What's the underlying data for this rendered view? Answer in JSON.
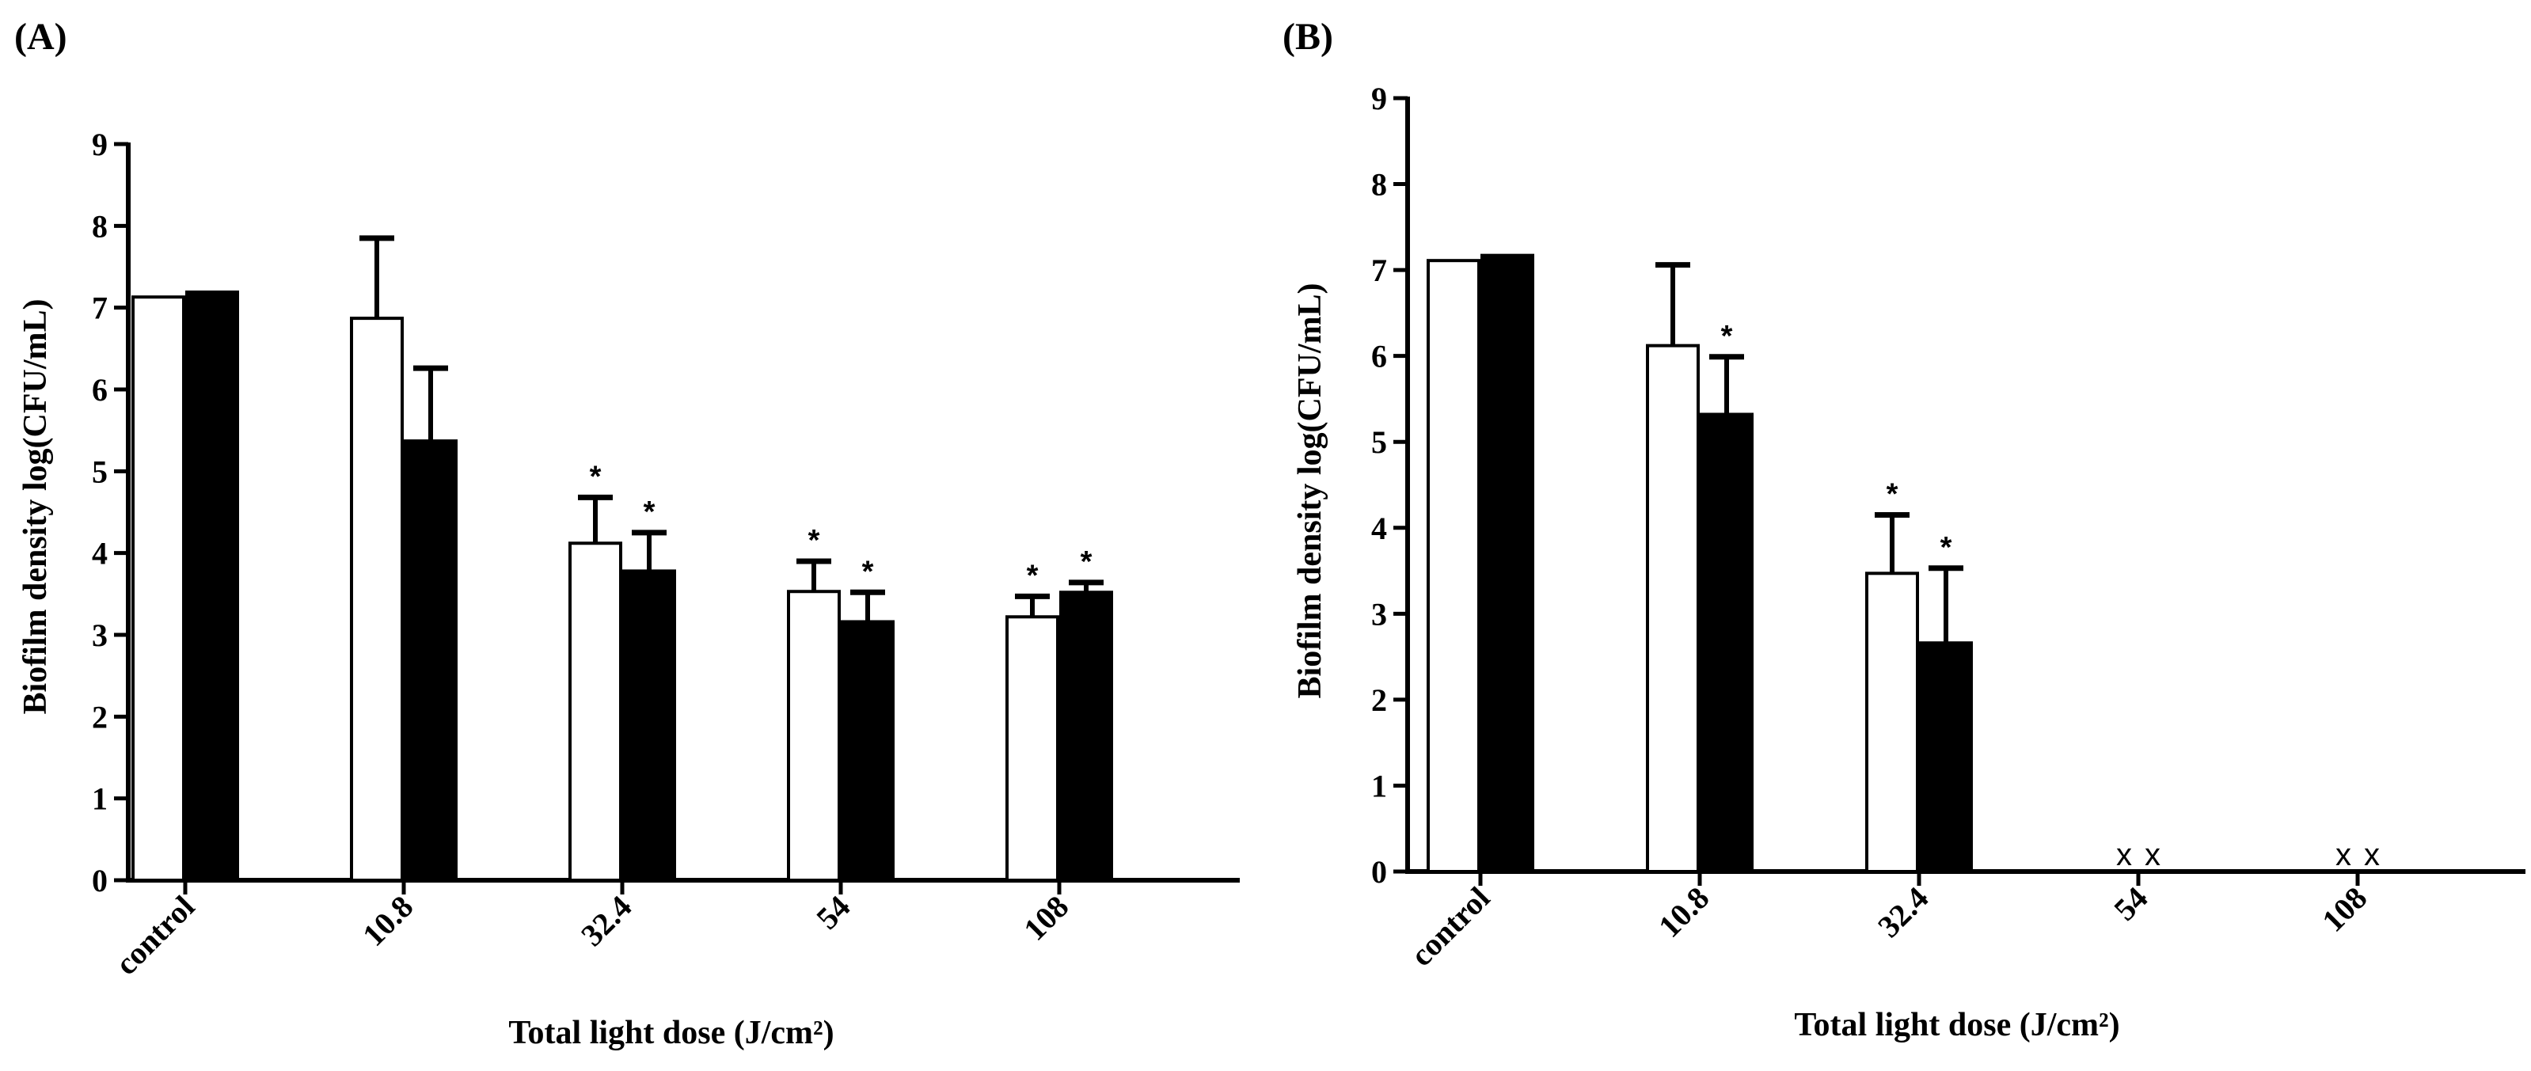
{
  "chart_data": [
    {
      "type": "bar",
      "panel": "(A)",
      "categories": [
        "control",
        "10.8",
        "32.4",
        "54",
        "108"
      ],
      "series": [
        {
          "name": "open",
          "fill": "#ffffff",
          "values": [
            7.13,
            6.87,
            4.12,
            3.53,
            3.22
          ],
          "errors": [
            0,
            0.98,
            0.56,
            0.37,
            0.25
          ],
          "significant": [
            false,
            false,
            true,
            true,
            true
          ],
          "missing": [
            false,
            false,
            false,
            false,
            false
          ]
        },
        {
          "name": "filled",
          "fill": "#000000",
          "values": [
            7.19,
            5.37,
            3.78,
            3.16,
            3.52
          ],
          "errors": [
            0,
            0.89,
            0.47,
            0.36,
            0.12
          ],
          "significant": [
            false,
            false,
            true,
            true,
            true
          ],
          "missing": [
            false,
            false,
            false,
            false,
            false
          ]
        }
      ],
      "yticks": [
        "0",
        "1",
        "2",
        "3",
        "4",
        "5",
        "6",
        "7",
        "8",
        "9"
      ],
      "ylim": [
        0,
        9
      ],
      "xlabel": "Total light dose (J/cm²)",
      "ylabel": "Biofilm density log(CFU/mL)",
      "sig_marker": "*",
      "missing_marker": "x"
    },
    {
      "type": "bar",
      "panel": "(B)",
      "categories": [
        "control",
        "10.8",
        "32.4",
        "54",
        "108"
      ],
      "series": [
        {
          "name": "open",
          "fill": "#ffffff",
          "values": [
            7.11,
            6.12,
            3.47,
            0,
            0
          ],
          "errors": [
            0,
            0.94,
            0.68,
            0,
            0
          ],
          "significant": [
            false,
            false,
            true,
            false,
            false
          ],
          "missing": [
            false,
            false,
            false,
            true,
            true
          ]
        },
        {
          "name": "filled",
          "fill": "#000000",
          "values": [
            7.17,
            5.32,
            2.66,
            0,
            0
          ],
          "errors": [
            0,
            0.67,
            0.87,
            0,
            0
          ],
          "significant": [
            false,
            true,
            true,
            false,
            false
          ],
          "missing": [
            false,
            false,
            false,
            true,
            true
          ]
        }
      ],
      "yticks": [
        "0",
        "1",
        "2",
        "3",
        "4",
        "5",
        "6",
        "7",
        "8",
        "9"
      ],
      "ylim": [
        0,
        9
      ],
      "xlabel": "Total light dose (J/cm²)",
      "ylabel": "Biofilm density log(CFU/mL)",
      "sig_marker": "*",
      "missing_marker": "x"
    }
  ]
}
